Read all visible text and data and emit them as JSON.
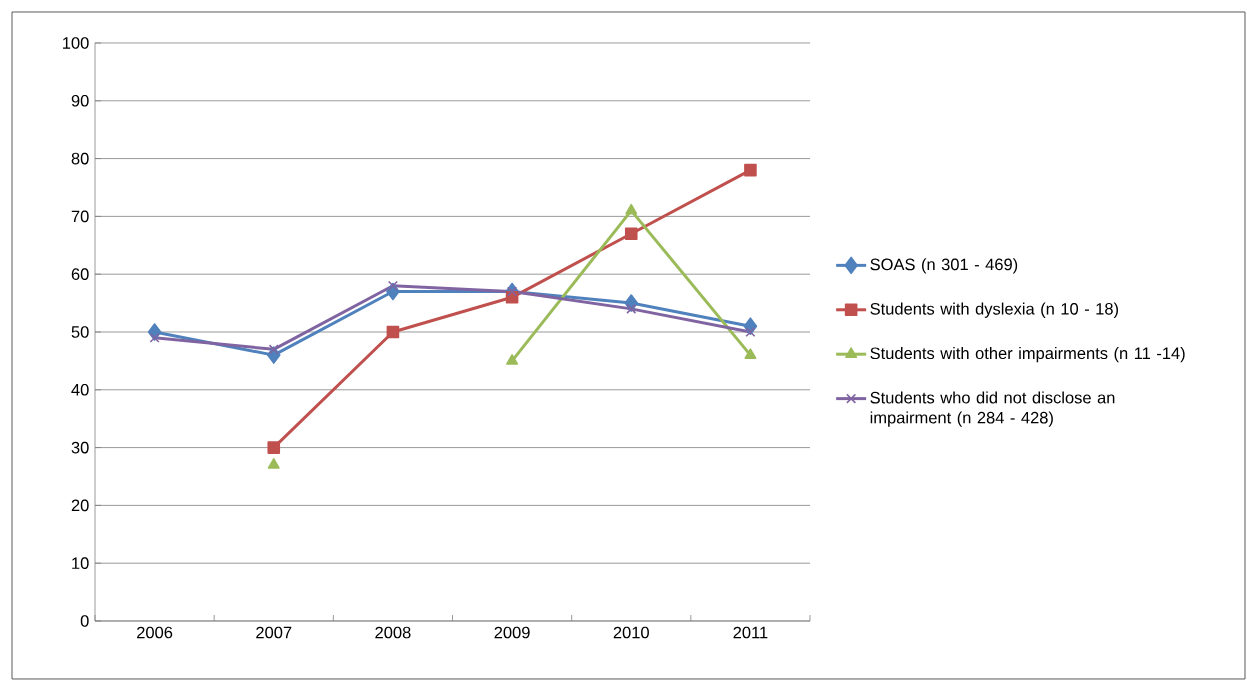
{
  "chart_data": {
    "type": "line",
    "categories": [
      "2006",
      "2007",
      "2008",
      "2009",
      "2010",
      "2011"
    ],
    "series": [
      {
        "name": "SOAS (n 301 - 469)",
        "color": "#4f81bd",
        "marker": "diamond",
        "values": [
          50,
          46,
          57,
          57,
          55,
          51
        ]
      },
      {
        "name": "Students with dyslexia (n 10 - 18)",
        "color": "#c0504d",
        "marker": "square",
        "values": [
          null,
          30,
          50,
          56,
          67,
          78
        ]
      },
      {
        "name": "Students with other impairments (n 11 -14)",
        "color": "#9bbb59",
        "marker": "triangle",
        "values": [
          null,
          27,
          null,
          45,
          71,
          46
        ]
      },
      {
        "name": "Students who did not disclose an impairment (n 284 - 428)",
        "color": "#8064a2",
        "marker": "cross",
        "values": [
          49,
          47,
          58,
          57,
          54,
          50
        ]
      }
    ],
    "ylim": [
      0,
      100
    ],
    "yticks": [
      0,
      10,
      20,
      30,
      40,
      50,
      60,
      70,
      80,
      90,
      100
    ],
    "grid": "y",
    "legend": "right"
  }
}
